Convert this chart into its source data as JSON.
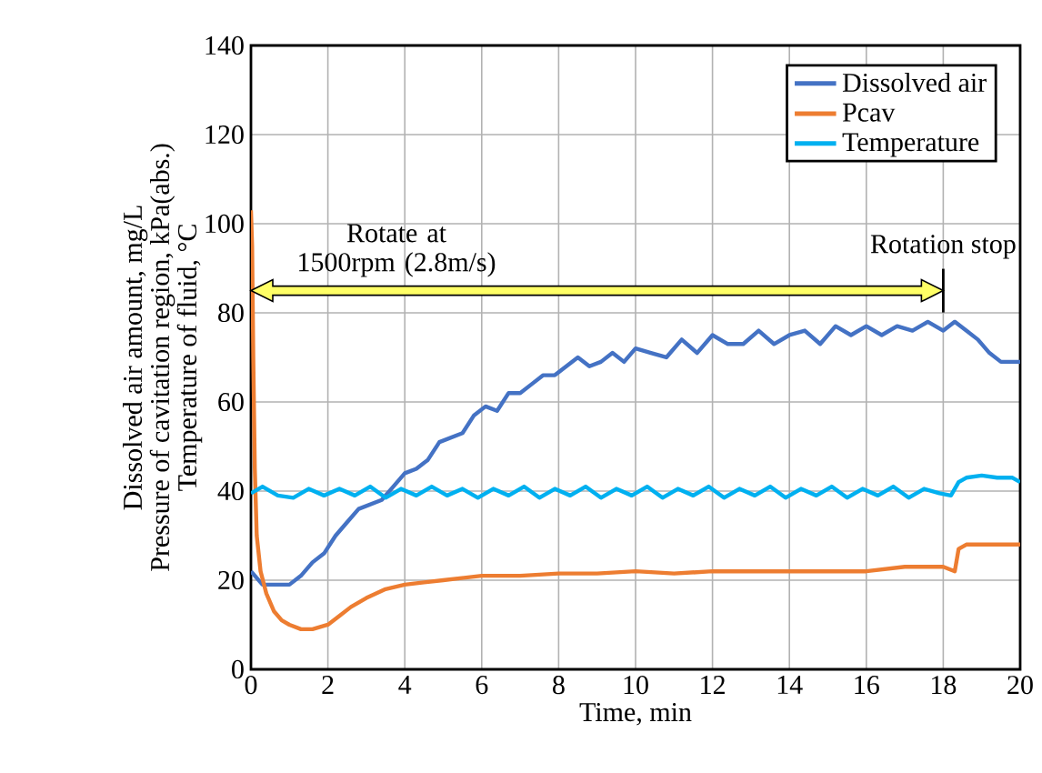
{
  "chart_data": {
    "type": "line",
    "xlabel": "Time, min",
    "ylabel": "Dissolved air amount, mg/L\nPressure of cavitation region, kPa(abs.)\nTemperature of fluid, °C",
    "xlim": [
      0,
      20
    ],
    "ylim": [
      0,
      140
    ],
    "xticks": [
      0,
      2,
      4,
      6,
      8,
      10,
      12,
      14,
      16,
      18,
      20
    ],
    "yticks": [
      0,
      20,
      40,
      60,
      80,
      100,
      120,
      140
    ],
    "grid": true,
    "legend": "top right",
    "marker": "none",
    "line_style": "solid",
    "series": [
      {
        "name": "Dissolved air",
        "color": "#4472c4",
        "x": [
          0,
          0.3,
          0.6,
          1.0,
          1.3,
          1.6,
          1.9,
          2.2,
          2.5,
          2.8,
          3.1,
          3.4,
          3.7,
          4.0,
          4.3,
          4.6,
          4.9,
          5.2,
          5.5,
          5.8,
          6.1,
          6.4,
          6.7,
          7.0,
          7.3,
          7.6,
          7.9,
          8.2,
          8.5,
          8.8,
          9.1,
          9.4,
          9.7,
          10.0,
          10.4,
          10.8,
          11.2,
          11.6,
          12.0,
          12.4,
          12.8,
          13.2,
          13.6,
          14.0,
          14.4,
          14.8,
          15.2,
          15.6,
          16.0,
          16.4,
          16.8,
          17.2,
          17.6,
          18.0,
          18.3,
          18.6,
          18.9,
          19.2,
          19.5,
          19.8,
          20
        ],
        "values": [
          22,
          19,
          19,
          19,
          21,
          24,
          26,
          30,
          33,
          36,
          37,
          38,
          41,
          44,
          45,
          47,
          51,
          52,
          53,
          57,
          59,
          58,
          62,
          62,
          64,
          66,
          66,
          68,
          70,
          68,
          69,
          71,
          69,
          72,
          71,
          70,
          74,
          71,
          75,
          73,
          73,
          76,
          73,
          75,
          76,
          73,
          77,
          75,
          77,
          75,
          77,
          76,
          78,
          76,
          78,
          76,
          74,
          71,
          69,
          69,
          69
        ]
      },
      {
        "name": "Pcav",
        "color": "#ed7d31",
        "x": [
          0,
          0.03,
          0.06,
          0.1,
          0.15,
          0.25,
          0.4,
          0.6,
          0.8,
          1.0,
          1.3,
          1.6,
          2.0,
          2.3,
          2.6,
          3.0,
          3.5,
          4.0,
          4.5,
          5.0,
          6.0,
          7.0,
          8.0,
          9.0,
          10.0,
          11.0,
          12.0,
          13.0,
          14.0,
          15.0,
          16.0,
          17.0,
          18.0,
          18.3,
          18.4,
          18.6,
          19.0,
          19.5,
          20
        ],
        "values": [
          103,
          95,
          70,
          45,
          30,
          22,
          17,
          13,
          11,
          10,
          9,
          9,
          10,
          12,
          14,
          16,
          18,
          19,
          19.5,
          20,
          21,
          21,
          21.5,
          21.5,
          22,
          21.5,
          22,
          22,
          22,
          22,
          22,
          23,
          23,
          22,
          27,
          28,
          28,
          28,
          28
        ]
      },
      {
        "name": "Temperature",
        "color": "#00b0f0",
        "x": [
          0,
          0.3,
          0.7,
          1.1,
          1.5,
          1.9,
          2.3,
          2.7,
          3.1,
          3.5,
          3.9,
          4.3,
          4.7,
          5.1,
          5.5,
          5.9,
          6.3,
          6.7,
          7.1,
          7.5,
          7.9,
          8.3,
          8.7,
          9.1,
          9.5,
          9.9,
          10.3,
          10.7,
          11.1,
          11.5,
          11.9,
          12.3,
          12.7,
          13.1,
          13.5,
          13.9,
          14.3,
          14.7,
          15.1,
          15.5,
          15.9,
          16.3,
          16.7,
          17.1,
          17.5,
          17.9,
          18.2,
          18.4,
          18.6,
          19.0,
          19.4,
          19.8,
          20
        ],
        "values": [
          39.5,
          41,
          39,
          38.5,
          40.5,
          39,
          40.5,
          39,
          41,
          38.5,
          40.5,
          39,
          41,
          39,
          40.5,
          38.5,
          40.5,
          39,
          41,
          38.5,
          40.5,
          39,
          41,
          38.5,
          40.5,
          39,
          41,
          38.5,
          40.5,
          39,
          41,
          38.5,
          40.5,
          39,
          41,
          38.5,
          40.5,
          39,
          41,
          38.5,
          40.5,
          39,
          41,
          38.5,
          40.5,
          39.5,
          39,
          42,
          43,
          43.5,
          43,
          43,
          42
        ]
      }
    ],
    "annotations": [
      "Rotate at 1500rpm (2.8m/s)"
    ],
    "ref_lines": [
      {
        "axis": "x",
        "value": 18,
        "label": "Rotation stop",
        "color": "#000000"
      }
    ]
  }
}
